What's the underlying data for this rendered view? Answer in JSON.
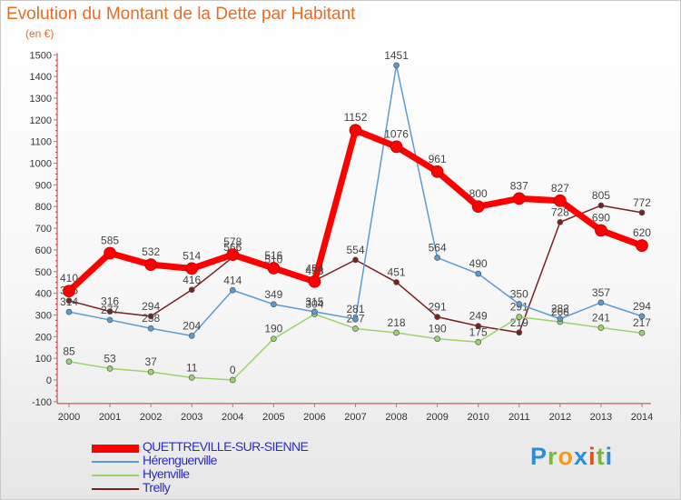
{
  "title": "Evolution du Montant de la Dette par Habitant",
  "subtitle": "(en €)",
  "logo": {
    "letters": [
      "P",
      "r",
      "o",
      "x",
      "i",
      "t",
      "i"
    ],
    "colors": [
      "#2b8fd6",
      "#7ab83a",
      "#f29b1c",
      "#2b8fd6",
      "#e84e1b",
      "#7ab83a",
      "#2b8fd6"
    ]
  },
  "chart_data": {
    "type": "line",
    "title": "Evolution du Montant de la Dette par Habitant",
    "ylabel": "(en €)",
    "xlabel": "",
    "ylim": [
      -100,
      1500
    ],
    "ytick_step": 100,
    "x": [
      "2000",
      "2001",
      "2002",
      "2003",
      "2004",
      "2005",
      "2006",
      "2007",
      "2008",
      "2009",
      "2010",
      "2011",
      "2012",
      "2013",
      "2014"
    ],
    "grid": false,
    "legend_position": "bottom-left",
    "series": [
      {
        "name": "Trelly",
        "color": "#7a1f1f",
        "width": 1.5,
        "label_color": "#444444",
        "values": [
          366,
          316,
          294,
          416,
          566,
          510,
          458,
          554,
          451,
          291,
          249,
          219,
          728,
          805,
          772
        ]
      },
      {
        "name": "Hyenville",
        "color": "#9ad46b",
        "width": 1.5,
        "label_color": "#444444",
        "values": [
          85,
          53,
          37,
          11,
          0,
          190,
          304,
          237,
          218,
          190,
          175,
          291,
          268,
          241,
          217
        ]
      },
      {
        "name": "Hérenguerville",
        "color": "#5b9bd5",
        "width": 1.5,
        "label_color": "#444444",
        "values": [
          314,
          277,
          238,
          204,
          414,
          349,
          315,
          281,
          1451,
          564,
          490,
          350,
          282,
          357,
          294
        ]
      },
      {
        "name": "QUETTREVILLE-SUR-SIENNE",
        "color": "#ff0000",
        "width": 7,
        "label_color": "#444444",
        "values": [
          410,
          585,
          532,
          514,
          578,
          516,
          454,
          1152,
          1076,
          961,
          800,
          837,
          827,
          690,
          620
        ]
      }
    ],
    "legend_order": [
      "QUETTREVILLE-SUR-SIENNE",
      "Hérenguerville",
      "Hyenville",
      "Trelly"
    ]
  }
}
